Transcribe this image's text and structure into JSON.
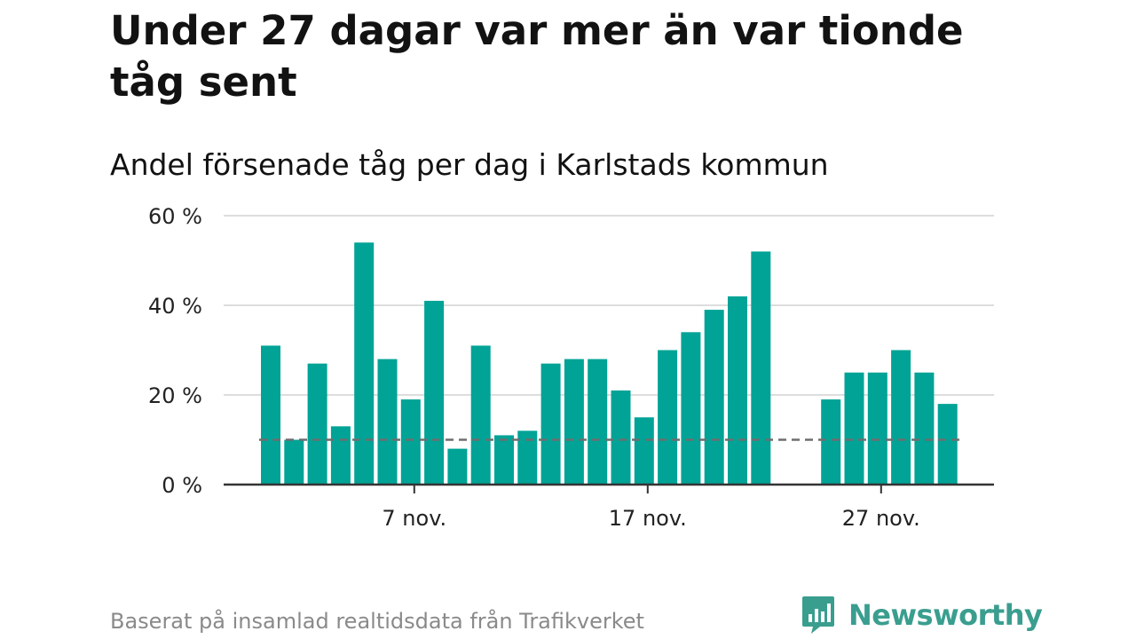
{
  "header": {
    "title": "Under 27 dagar var mer än var tionde tåg sent",
    "subtitle": "Andel försenade tåg per dag i Karlstads kommun"
  },
  "footer": {
    "source": "Baserat på insamlad realtidsdata från Trafikverket",
    "brand": "Newsworthy"
  },
  "chart_data": {
    "type": "bar",
    "title": "Under 27 dagar var mer än var tionde tåg sent",
    "subtitle": "Andel försenade tåg per dag i Karlstads kommun",
    "xlabel": "",
    "ylabel": "",
    "x": [
      1,
      2,
      3,
      4,
      5,
      6,
      7,
      8,
      9,
      10,
      11,
      12,
      13,
      14,
      15,
      16,
      17,
      18,
      19,
      20,
      21,
      22,
      23,
      24,
      25,
      26,
      27,
      28,
      29,
      30
    ],
    "values": [
      31,
      10,
      27,
      13,
      54,
      28,
      19,
      41,
      8,
      31,
      11,
      12,
      27,
      28,
      28,
      21,
      15,
      30,
      34,
      39,
      42,
      52,
      null,
      null,
      19,
      25,
      25,
      30,
      25,
      18
    ],
    "x_ticks": [
      {
        "day": 7,
        "label": "7 nov."
      },
      {
        "day": 17,
        "label": "17 nov."
      },
      {
        "day": 27,
        "label": "27 nov."
      }
    ],
    "y_ticks": [
      {
        "value": 0,
        "label": "0 %"
      },
      {
        "value": 20,
        "label": "20 %"
      },
      {
        "value": 40,
        "label": "40 %"
      },
      {
        "value": 60,
        "label": "60 %"
      }
    ],
    "ylim": [
      0,
      60
    ],
    "reference_line": 10,
    "grid": true,
    "colors": {
      "bar": "#00a396",
      "reference": "#6e6e6e",
      "grid": "#dddddd",
      "axis": "#333333"
    }
  }
}
